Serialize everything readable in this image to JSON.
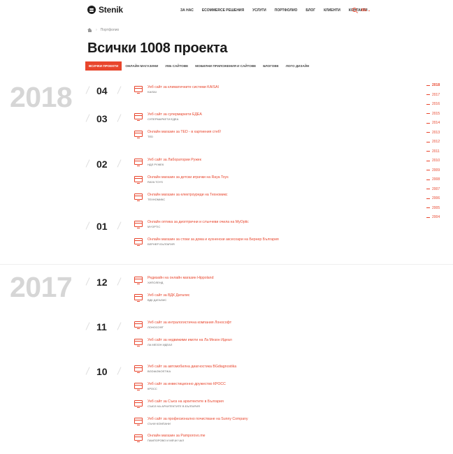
{
  "header": {
    "logo_text": "Stenik",
    "nav": [
      "ЗА НАС",
      "ECOMMERCE РЕШЕНИЯ",
      "УСЛУГИ",
      "ПОРТФОЛИО",
      "БЛОГ",
      "КЛИЕНТИ",
      "КОНТАКТИ"
    ],
    "lang": "BG",
    "lang_arrow": "⌄"
  },
  "breadcrumb": {
    "sep": "›",
    "current": "Портфолио"
  },
  "page_title": "Всички 1008 проекта",
  "tabs": [
    "ВСИЧКИ ПРОЕКТИ",
    "ОНЛАЙН МАГАЗИНИ",
    "УЕБ САЙТОВЕ",
    "МОБИЛНИ ПРИЛОЖЕНИЯ И САЙТОВЕ",
    "БЛОГОВЕ",
    "ЛОГО ДИЗАЙН"
  ],
  "years": [
    {
      "year": "2018",
      "months": [
        {
          "num": "04",
          "projects": [
            {
              "title": "Уеб сайт за климатичните системи KAISAI",
              "client": "KAISAI"
            }
          ]
        },
        {
          "num": "03",
          "projects": [
            {
              "title": "Уеб сайт за супермаркети ЕДЕА",
              "client": "СУПЕРМАРКЕТИ ЕДЕА"
            },
            {
              "title": "Онлайн магазин за TED - в хартиения стеб!",
              "client": "TED"
            }
          ]
        },
        {
          "num": "02",
          "projects": [
            {
              "title": "Уеб сайт за Лаборатории Ружек",
              "client": "НДЛ РУЖЕК"
            },
            {
              "title": "Онлайн магазин за детски играчки на Raya Toys",
              "client": "RAYA TOYS"
            },
            {
              "title": "Онлайн магазин за електроуреди на Техномикс",
              "client": "ТЕХНОМИКС"
            }
          ]
        },
        {
          "num": "01",
          "projects": [
            {
              "title": "Онлайн оптика за диоптрични и слънчеви очила на MyOptic",
              "client": "MYOPTIC"
            },
            {
              "title": "Онлайн магазин за стоки за дома и кухненски аксесоари на Бернер България",
              "client": "БЕРНЕР БЪЛГАРИЯ"
            }
          ]
        }
      ]
    },
    {
      "year": "2017",
      "months": [
        {
          "num": "12",
          "projects": [
            {
              "title": "Редизайн на онлайн магазин Hippoland",
              "client": "ХИПОЛЕНД"
            },
            {
              "title": "Уеб сайт за ВДК Даталис",
              "client": "ВДК ДАТАЛИС"
            }
          ]
        },
        {
          "num": "11",
          "projects": [
            {
              "title": "Уеб сайт за интралогистична компания Лонософт",
              "client": "ЛОНОСОФТ"
            },
            {
              "title": "Уеб сайт за недвижими имоти на Ла Мезон Идеал",
              "client": "ЛА МЕЗОН ИДЕАЛ"
            }
          ]
        },
        {
          "num": "10",
          "projects": [
            {
              "title": "Уеб сайт за автомобилна диагностика BGdiagnostika",
              "client": "BGDIAGNOSTIKA"
            },
            {
              "title": "Уеб сайт за инвестиционно дружество КРОСС",
              "client": "КРОСС"
            },
            {
              "title": "Уеб сайт за Съюз на архитектите в България",
              "client": "СЪЮЗ НА АРХИТЕКТИТЕ В БЪЛГАРИЯ"
            },
            {
              "title": "Уеб сайт за професионално почистване на Sunny Company",
              "client": "СЪНИ КОМПАНИ"
            },
            {
              "title": "Онлайн магазин за Pamporovo.me",
              "client": "ПАМПОРОВО И МЕЧИ ЧАЛ"
            }
          ]
        }
      ]
    }
  ],
  "timeline": [
    "2018",
    "2017",
    "2016",
    "2015",
    "2014",
    "2013",
    "2012",
    "2011",
    "2010",
    "2009",
    "2008",
    "2007",
    "2006",
    "2005",
    "2004"
  ],
  "colors": {
    "accent": "#e8452c",
    "year_gray": "#d6d6d6"
  }
}
